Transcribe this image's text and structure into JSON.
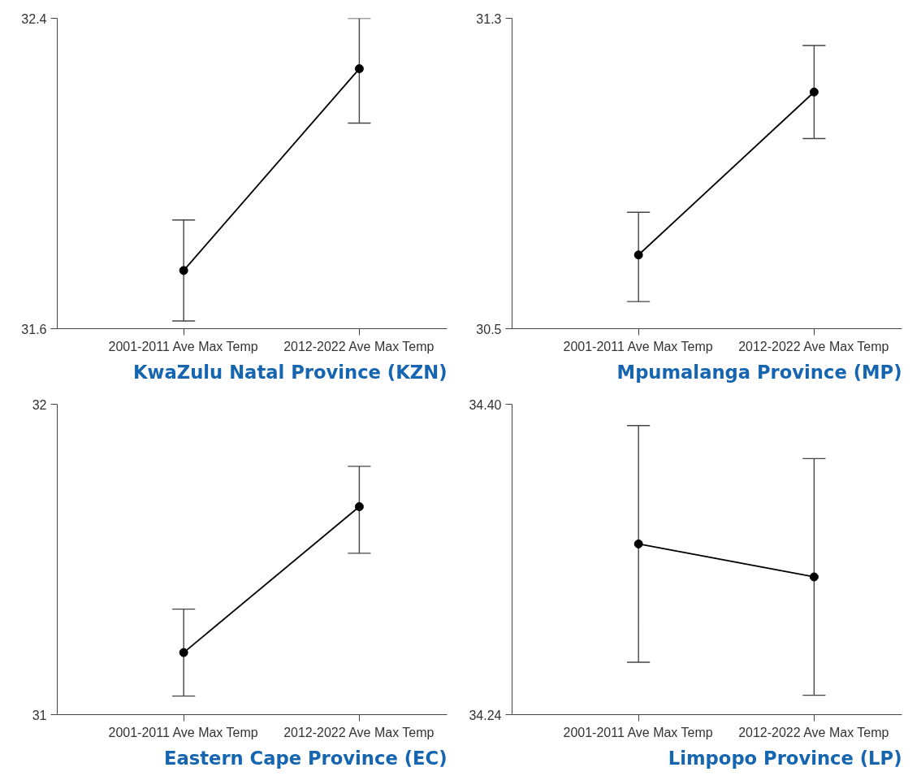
{
  "chart_data": [
    {
      "type": "line",
      "title": "KwaZulu Natal Province (KZN)",
      "categories": [
        "2001-2011 Ave Max Temp",
        "2012-2022 Ave Max Temp"
      ],
      "values": [
        31.75,
        32.27
      ],
      "errors": [
        [
          31.62,
          31.88
        ],
        [
          32.13,
          32.4
        ]
      ],
      "color": "#000000",
      "marker": "circle",
      "line_style": "solid",
      "grid": false,
      "ylim": [
        31.6,
        32.4
      ],
      "yticks": [
        31.6,
        32.4
      ]
    },
    {
      "type": "line",
      "title": "Mpumalanga Province (MP)",
      "categories": [
        "2001-2011 Ave Max Temp",
        "2012-2022 Ave Max Temp"
      ],
      "values": [
        30.69,
        31.11
      ],
      "errors": [
        [
          30.57,
          30.8
        ],
        [
          30.99,
          31.23
        ]
      ],
      "color": "#000000",
      "marker": "circle",
      "line_style": "solid",
      "grid": false,
      "ylim": [
        30.5,
        31.3
      ],
      "yticks": [
        30.5,
        31.3
      ]
    },
    {
      "type": "line",
      "title": "Eastern Cape Province (EC)",
      "categories": [
        "2001-2011 Ave Max Temp",
        "2012-2022 Ave Max Temp"
      ],
      "values": [
        31.2,
        31.67
      ],
      "errors": [
        [
          31.06,
          31.34
        ],
        [
          31.52,
          31.8
        ]
      ],
      "color": "#000000",
      "marker": "circle",
      "line_style": "solid",
      "grid": false,
      "ylim": [
        31,
        32
      ],
      "yticks": [
        31,
        32
      ]
    },
    {
      "type": "line",
      "title": "Limpopo Province (LP)",
      "categories": [
        "2001-2011 Ave Max Temp",
        "2012-2022 Ave Max Temp"
      ],
      "values": [
        34.328,
        34.311
      ],
      "errors": [
        [
          34.267,
          34.389
        ],
        [
          34.25,
          34.372
        ]
      ],
      "color": "#000000",
      "marker": "circle",
      "line_style": "solid",
      "grid": false,
      "ylim": [
        34.24,
        34.4
      ],
      "yticks": [
        {
          "value": 34.24,
          "label": "34.24"
        },
        {
          "value": 34.4,
          "label": "34.40"
        }
      ]
    }
  ]
}
